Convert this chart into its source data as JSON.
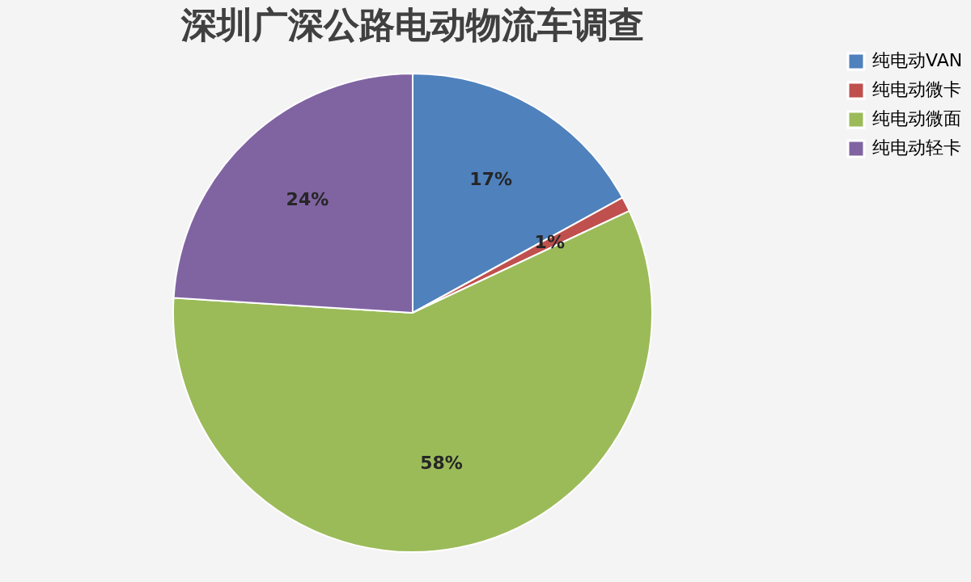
{
  "chart_data": {
    "type": "pie",
    "title": "深圳广深公路电动物流车调查",
    "categories": [
      "纯电动VAN",
      "纯电动微卡",
      "纯电动微面",
      "纯电动轻卡"
    ],
    "values": [
      17,
      1,
      58,
      24
    ],
    "colors": [
      "#4f81bd",
      "#c0504d",
      "#9bbb59",
      "#8064a2"
    ],
    "value_labels": [
      "17%",
      "1%",
      "58%",
      "24%"
    ],
    "legend": "right"
  }
}
